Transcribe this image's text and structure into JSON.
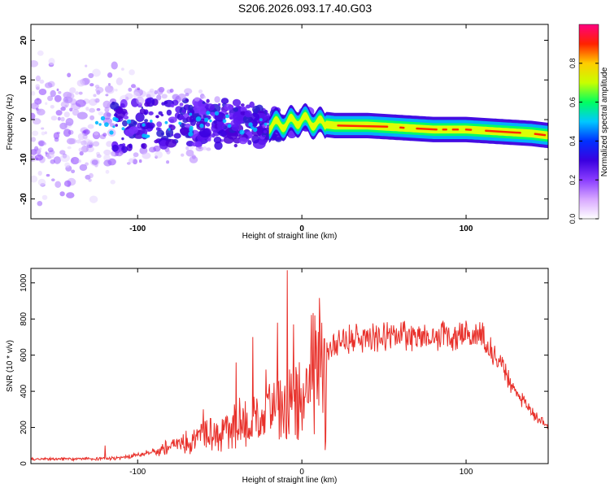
{
  "title": "S206.2026.093.17.40.G03",
  "chart_data": [
    {
      "type": "heatmap",
      "title": "S206.2026.093.17.40.G03",
      "xlabel": "Height of straight line (km)",
      "ylabel": "Frequency (Hz)",
      "xlim": [
        -165,
        150
      ],
      "ylim": [
        -25,
        24
      ],
      "xticks": [
        -100,
        0,
        100
      ],
      "yticks": [
        -20,
        -10,
        0,
        10,
        20
      ],
      "xtick_labels": [
        "-100",
        "0",
        "100"
      ],
      "ytick_labels": [
        "-20",
        "-10",
        "0",
        "10",
        "20"
      ],
      "ridge": {
        "x": [
          -165,
          -120,
          -80,
          -40,
          -20,
          -10,
          0,
          10,
          20,
          40,
          60,
          80,
          100,
          120,
          140,
          150
        ],
        "y": [
          -2,
          -2,
          -1,
          -1,
          -1.5,
          -1,
          0,
          -1,
          -1.5,
          -1.5,
          -2,
          -2.5,
          -2.5,
          -3,
          -3.5,
          -4
        ]
      },
      "colorbar": {
        "label": "Normalized spectral amplitude",
        "range": [
          0,
          1
        ],
        "ticks": [
          0.0,
          0.2,
          0.4,
          0.6,
          0.8
        ],
        "tick_labels": [
          "0.0",
          "0.2",
          "0.4",
          "0.6",
          "0.8"
        ],
        "colors": [
          "#ffffff",
          "#d8a8ff",
          "#8a3dff",
          "#3a00e0",
          "#0030ff",
          "#00c8ff",
          "#00ff60",
          "#c8ff00",
          "#ffcc00",
          "#ff2200",
          "#ff0080"
        ]
      }
    },
    {
      "type": "line",
      "xlabel": "Height of straight line (km)",
      "ylabel": "SNR (10 * v/v)",
      "xlim": [
        -165,
        150
      ],
      "ylim": [
        0,
        1080
      ],
      "xticks": [
        -100,
        0,
        100
      ],
      "yticks": [
        0,
        200,
        400,
        600,
        800,
        1000
      ],
      "xtick_labels": [
        "-100",
        "0",
        "100"
      ],
      "ytick_labels": [
        "0",
        "200",
        "400",
        "600",
        "800",
        "1000"
      ],
      "color": "#e8302a",
      "envelope": {
        "x": [
          -165,
          -140,
          -110,
          -100,
          -80,
          -60,
          -45,
          -30,
          -20,
          -10,
          0,
          5,
          10,
          15,
          20,
          30,
          40,
          60,
          80,
          100,
          110,
          120,
          130,
          140,
          150
        ],
        "y": [
          25,
          25,
          30,
          45,
          90,
          150,
          200,
          230,
          300,
          330,
          380,
          480,
          560,
          640,
          670,
          690,
          700,
          705,
          700,
          710,
          700,
          560,
          400,
          280,
          200
        ]
      },
      "spikes": {
        "x": [
          -120,
          -60,
          -40,
          -30,
          -22,
          -15,
          -9,
          -5,
          3,
          8,
          12,
          40,
          60,
          86,
          100,
          110
        ],
        "y": [
          100,
          300,
          560,
          700,
          520,
          780,
          1070,
          770,
          520,
          820,
          780,
          740,
          730,
          790,
          790,
          780
        ]
      }
    }
  ]
}
